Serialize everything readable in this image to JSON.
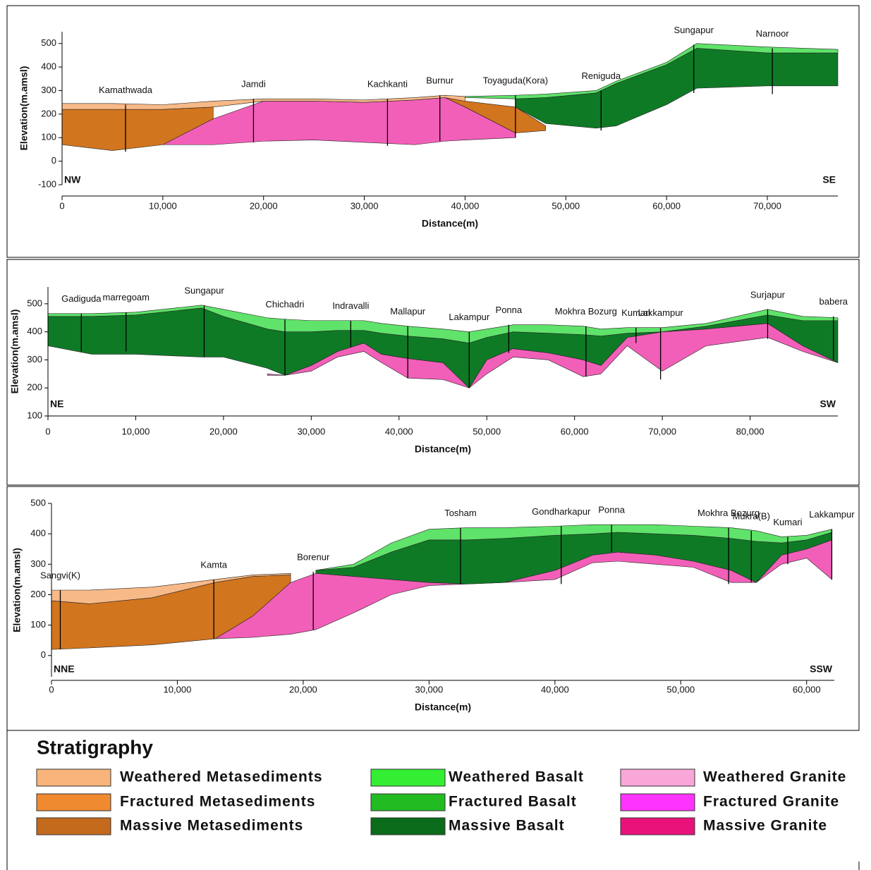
{
  "chart_data": [
    {
      "type": "cross-section",
      "x_label": "Distance(m)",
      "y_label": "Elevation(m.amsl)",
      "left_label": "NW",
      "right_label": "SE",
      "xlim": [
        0,
        77000
      ],
      "xticks": [
        0,
        {
          "value": 10000,
          "label": "10,000"
        },
        {
          "value": 20000,
          "label": "20,000"
        },
        {
          "value": 30000,
          "label": "30,000"
        },
        {
          "value": 40000,
          "label": "40,000"
        },
        {
          "value": 50000,
          "label": "50,000"
        },
        {
          "value": 60000,
          "label": "60,000"
        },
        {
          "value": 70000,
          "label": "70,000"
        }
      ],
      "ylim": [
        -100,
        550
      ],
      "yticks": [
        -100,
        0,
        100,
        200,
        300,
        400,
        500
      ],
      "x": [
        0,
        5000,
        10000,
        15000,
        20000,
        25000,
        30000,
        35000,
        38000,
        40000,
        45000,
        48000,
        53000,
        55000,
        60000,
        63000,
        70000,
        77000
      ],
      "layers": [
        {
          "color": "#f25fb8",
          "top": [
            null,
            null,
            70,
            180,
            255,
            255,
            250,
            260,
            270,
            230,
            120,
            null,
            null,
            null,
            null,
            null,
            null,
            null
          ],
          "bottom": [
            null,
            null,
            70,
            70,
            85,
            90,
            80,
            70,
            85,
            90,
            100,
            null,
            null,
            null,
            null,
            null,
            null,
            null
          ]
        },
        {
          "color": "#d2751f",
          "top": [
            220,
            220,
            220,
            230,
            null,
            null,
            null,
            null,
            270,
            255,
            230,
            150,
            null,
            null,
            null,
            null,
            null,
            null
          ],
          "bottom": [
            70,
            45,
            70,
            180,
            null,
            null,
            null,
            null,
            270,
            230,
            120,
            130,
            null,
            null,
            null,
            null,
            null,
            null
          ]
        },
        {
          "color": "#f7b987",
          "top": [
            245,
            245,
            240,
            255,
            265,
            265,
            260,
            270,
            280,
            275,
            null,
            null,
            null,
            null,
            null,
            null,
            null,
            null
          ],
          "bottom": [
            220,
            220,
            220,
            230,
            255,
            255,
            250,
            260,
            270,
            255,
            null,
            null,
            null,
            null,
            null,
            null,
            null,
            null
          ]
        },
        {
          "color": "#0f7a26",
          "top": [
            null,
            null,
            null,
            null,
            null,
            null,
            null,
            null,
            null,
            null,
            265,
            270,
            290,
            330,
            410,
            480,
            460,
            460
          ],
          "bottom": [
            null,
            null,
            null,
            null,
            null,
            null,
            null,
            null,
            null,
            null,
            230,
            160,
            140,
            150,
            240,
            310,
            320,
            320
          ]
        },
        {
          "color": "#5fe36a",
          "top": [
            null,
            null,
            null,
            null,
            null,
            null,
            null,
            null,
            null,
            275,
            280,
            285,
            300,
            340,
            420,
            500,
            485,
            475
          ],
          "bottom": [
            null,
            null,
            null,
            null,
            null,
            null,
            null,
            null,
            null,
            270,
            265,
            270,
            290,
            330,
            410,
            480,
            460,
            460
          ]
        }
      ],
      "wells": [
        {
          "name": "Kamathwada",
          "x": 6300,
          "top": 240,
          "bottom": 40
        },
        {
          "name": "Jamdi",
          "x": 19000,
          "top": 265,
          "bottom": 80
        },
        {
          "name": "Kachkanti",
          "x": 32300,
          "top": 265,
          "bottom": 65
        },
        {
          "name": "Burnur",
          "x": 37500,
          "top": 280,
          "bottom": 85
        },
        {
          "name": "Toyaguda(Kora)",
          "x": 45000,
          "top": 280,
          "bottom": 100
        },
        {
          "name": "Reniguda",
          "x": 53500,
          "top": 300,
          "bottom": 130
        },
        {
          "name": "Sungapur",
          "x": 62700,
          "top": 495,
          "bottom": 290
        },
        {
          "name": "Narnoor",
          "x": 70500,
          "top": 480,
          "bottom": 285
        }
      ]
    },
    {
      "type": "cross-section",
      "x_label": "Distance(m)",
      "y_label": "Elevation(m.amsl)",
      "left_label": "NE",
      "right_label": "SW",
      "xlim": [
        0,
        90000
      ],
      "xticks": [
        0,
        {
          "value": 10000,
          "label": "10,000"
        },
        {
          "value": 20000,
          "label": "20,000"
        },
        {
          "value": 30000,
          "label": "30,000"
        },
        {
          "value": 40000,
          "label": "40,000"
        },
        {
          "value": 50000,
          "label": "50,000"
        },
        {
          "value": 60000,
          "label": "60,000"
        },
        {
          "value": 70000,
          "label": "70,000"
        },
        {
          "value": 80000,
          "label": "80,000"
        }
      ],
      "ylim": [
        100,
        560
      ],
      "yticks": [
        100,
        200,
        300,
        400,
        500
      ],
      "x": [
        0,
        5000,
        10000,
        17500,
        20000,
        25000,
        27000,
        30000,
        33000,
        36000,
        38000,
        41000,
        45000,
        48000,
        50000,
        53000,
        57000,
        61000,
        63000,
        66000,
        70000,
        75000,
        82000,
        86000,
        90000
      ],
      "layers": [
        {
          "color": "#f25fb8",
          "top": [
            null,
            null,
            null,
            null,
            null,
            250,
            245,
            280,
            330,
            360,
            320,
            305,
            290,
            200,
            300,
            340,
            325,
            300,
            280,
            380,
            400,
            410,
            430,
            350,
            290
          ],
          "bottom": [
            null,
            null,
            null,
            null,
            null,
            245,
            245,
            260,
            310,
            330,
            290,
            235,
            230,
            200,
            250,
            310,
            300,
            240,
            250,
            350,
            260,
            350,
            380,
            330,
            290
          ]
        },
        {
          "color": "#0f7a26",
          "top": [
            455,
            455,
            460,
            485,
            455,
            410,
            400,
            400,
            405,
            405,
            395,
            385,
            375,
            360,
            380,
            400,
            395,
            390,
            385,
            395,
            400,
            420,
            460,
            440,
            440
          ],
          "bottom": [
            350,
            320,
            320,
            310,
            310,
            270,
            245,
            280,
            330,
            360,
            320,
            305,
            290,
            200,
            300,
            340,
            325,
            300,
            280,
            380,
            400,
            410,
            430,
            350,
            290
          ]
        },
        {
          "color": "#5fe36a",
          "top": [
            465,
            465,
            470,
            495,
            480,
            450,
            445,
            440,
            440,
            440,
            430,
            420,
            410,
            400,
            410,
            425,
            425,
            420,
            410,
            415,
            415,
            430,
            480,
            455,
            450
          ],
          "bottom": [
            455,
            455,
            460,
            485,
            455,
            410,
            400,
            400,
            405,
            405,
            395,
            385,
            375,
            360,
            380,
            400,
            395,
            390,
            385,
            395,
            400,
            420,
            460,
            440,
            440
          ]
        }
      ],
      "wells": [
        {
          "name": "Gadiguda",
          "x": 3800,
          "top": 465,
          "bottom": 330
        },
        {
          "name": "marregoam",
          "x": 8900,
          "top": 470,
          "bottom": 330
        },
        {
          "name": "Sungapur",
          "x": 17800,
          "top": 495,
          "bottom": 310
        },
        {
          "name": "Chichadri",
          "x": 27000,
          "top": 445,
          "bottom": 245
        },
        {
          "name": "Indravalli",
          "x": 34500,
          "top": 440,
          "bottom": 345
        },
        {
          "name": "Mallapur",
          "x": 41000,
          "top": 420,
          "bottom": 235
        },
        {
          "name": "Lakampur",
          "x": 48000,
          "top": 400,
          "bottom": 200
        },
        {
          "name": "Ponna",
          "x": 52500,
          "top": 425,
          "bottom": 325
        },
        {
          "name": "Mokhra Bozurg",
          "x": 61300,
          "top": 420,
          "bottom": 240
        },
        {
          "name": "Kumari",
          "x": 67000,
          "top": 415,
          "bottom": 360
        },
        {
          "name": "Lakkampur",
          "x": 69800,
          "top": 415,
          "bottom": 230
        },
        {
          "name": "Surjapur",
          "x": 82000,
          "top": 480,
          "bottom": 375
        },
        {
          "name": "babera",
          "x": 89500,
          "top": 455,
          "bottom": 300
        }
      ]
    },
    {
      "type": "cross-section",
      "x_label": "Distance(m)",
      "y_label": "Elevation(m.amsl)",
      "left_label": "NNE",
      "right_label": "SSW",
      "xlim": [
        0,
        62200
      ],
      "xticks": [
        0,
        {
          "value": 10000,
          "label": "10,000"
        },
        {
          "value": 20000,
          "label": "20,000"
        },
        {
          "value": 30000,
          "label": "30,000"
        },
        {
          "value": 40000,
          "label": "40,000"
        },
        {
          "value": 50000,
          "label": "50,000"
        },
        {
          "value": 60000,
          "label": "60,000"
        }
      ],
      "ylim": [
        -70,
        500
      ],
      "yticks": [
        0,
        100,
        200,
        300,
        400,
        500
      ],
      "x": [
        0,
        3000,
        8000,
        13000,
        16000,
        19000,
        21000,
        24000,
        27000,
        30000,
        33000,
        36000,
        40000,
        43000,
        45000,
        48000,
        51000,
        54000,
        56000,
        58000,
        60000,
        62000
      ],
      "layers": [
        {
          "color": "#f25fb8",
          "top": [
            null,
            null,
            null,
            55,
            130,
            240,
            270,
            260,
            250,
            240,
            235,
            240,
            280,
            330,
            340,
            330,
            310,
            280,
            240,
            330,
            350,
            380
          ],
          "bottom": [
            null,
            null,
            null,
            55,
            60,
            70,
            85,
            140,
            200,
            230,
            235,
            240,
            250,
            305,
            310,
            300,
            290,
            240,
            240,
            300,
            320,
            250
          ]
        },
        {
          "color": "#d2751f",
          "top": [
            180,
            170,
            190,
            240,
            260,
            265,
            null,
            null,
            null,
            null,
            null,
            null,
            null,
            null,
            null,
            null,
            null,
            null,
            null,
            null,
            null,
            null
          ],
          "bottom": [
            20,
            25,
            35,
            55,
            130,
            240,
            null,
            null,
            null,
            null,
            null,
            null,
            null,
            null,
            null,
            null,
            null,
            null,
            null,
            null,
            null,
            null
          ]
        },
        {
          "color": "#f7b987",
          "top": [
            215,
            215,
            225,
            250,
            265,
            270,
            null,
            null,
            null,
            null,
            null,
            null,
            null,
            null,
            null,
            null,
            null,
            null,
            null,
            null,
            null,
            null
          ],
          "bottom": [
            180,
            170,
            190,
            240,
            260,
            265,
            null,
            null,
            null,
            null,
            null,
            null,
            null,
            null,
            null,
            null,
            null,
            null,
            null,
            null,
            null,
            null
          ]
        },
        {
          "color": "#0f7a26",
          "top": [
            null,
            null,
            null,
            null,
            null,
            null,
            280,
            290,
            340,
            380,
            380,
            385,
            395,
            400,
            405,
            400,
            395,
            385,
            375,
            370,
            380,
            405
          ],
          "bottom": [
            null,
            null,
            null,
            null,
            null,
            null,
            270,
            260,
            250,
            240,
            235,
            240,
            280,
            330,
            340,
            330,
            310,
            280,
            240,
            330,
            350,
            380
          ]
        },
        {
          "color": "#5fe36a",
          "top": [
            null,
            null,
            null,
            null,
            null,
            null,
            280,
            300,
            370,
            415,
            420,
            420,
            425,
            430,
            430,
            430,
            425,
            420,
            410,
            390,
            395,
            415
          ],
          "bottom": [
            null,
            null,
            null,
            null,
            null,
            null,
            280,
            290,
            340,
            380,
            380,
            385,
            395,
            400,
            405,
            400,
            395,
            385,
            375,
            370,
            380,
            405
          ]
        }
      ],
      "wells": [
        {
          "name": "Sangvi(K)",
          "x": 700,
          "top": 215,
          "bottom": 20
        },
        {
          "name": "Kamta",
          "x": 12900,
          "top": 250,
          "bottom": 55
        },
        {
          "name": "Borenur",
          "x": 20800,
          "top": 275,
          "bottom": 85
        },
        {
          "name": "Tosham",
          "x": 32500,
          "top": 420,
          "bottom": 235
        },
        {
          "name": "Gondharkapur",
          "x": 40500,
          "top": 425,
          "bottom": 235
        },
        {
          "name": "Ponna",
          "x": 44500,
          "top": 430,
          "bottom": 340
        },
        {
          "name": "Mokhra Bozurg",
          "x": 53800,
          "top": 420,
          "bottom": 235
        },
        {
          "name": "Mukra(B)",
          "x": 55600,
          "top": 410,
          "bottom": 240
        },
        {
          "name": "Kumari",
          "x": 58500,
          "top": 390,
          "bottom": 300
        },
        {
          "name": "Lakkampur",
          "x": 62000,
          "top": 415,
          "bottom": 250
        }
      ]
    }
  ],
  "stratigraphy": {
    "title": "Stratigraphy",
    "units": [
      {
        "name": "Weathered Metasediments",
        "color": "#f8b47a"
      },
      {
        "name": "Fractured Metasediments",
        "color": "#f08a30"
      },
      {
        "name": "Massive Metasediments",
        "color": "#c46a1c"
      },
      {
        "name": "Weathered Basalt",
        "color": "#33ee33"
      },
      {
        "name": "Fractured Basalt",
        "color": "#22bb22"
      },
      {
        "name": "Massive Basalt",
        "color": "#0a6b1a"
      },
      {
        "name": "Weathered Granite",
        "color": "#f9a6d9"
      },
      {
        "name": "Fractured Granite",
        "color": "#ff33ff"
      },
      {
        "name": "Massive Granite",
        "color": "#e8127a"
      }
    ]
  }
}
